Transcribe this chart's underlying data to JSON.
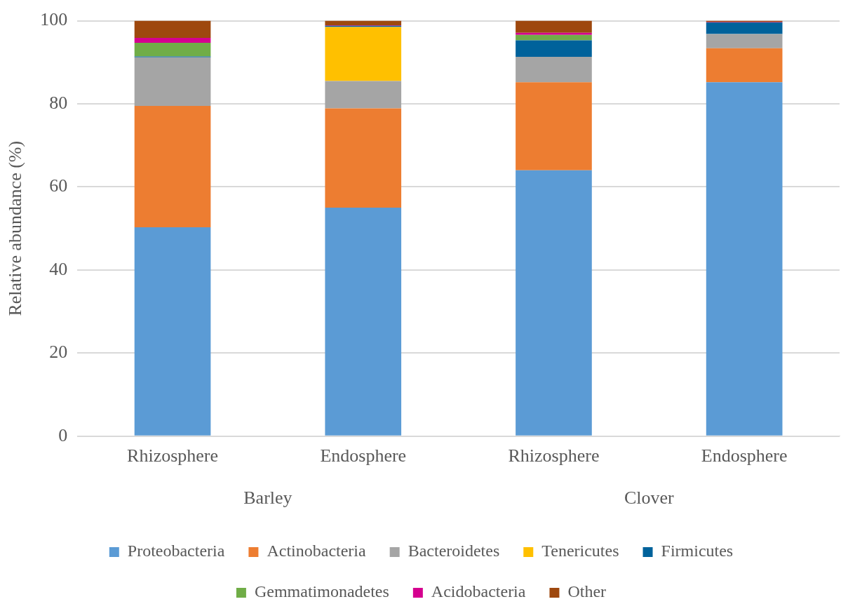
{
  "chart_data": {
    "type": "bar",
    "stacked": true,
    "ylabel": "Relative abundance (%)",
    "categories": [
      "Rhizosphere",
      "Endosphere",
      "Rhizosphere",
      "Endosphere"
    ],
    "annotations": [
      "Barley",
      "Clover"
    ],
    "series": [
      {
        "name": "Proteobacteria",
        "color": "#5b9bd5",
        "values": [
          50.3,
          55.0,
          64.0,
          85.2
        ]
      },
      {
        "name": "Actinobacteria",
        "color": "#ed7d31",
        "values": [
          29.2,
          23.9,
          21.2,
          8.2
        ]
      },
      {
        "name": "Bacteroidetes",
        "color": "#a5a5a5",
        "values": [
          11.7,
          6.6,
          6.1,
          3.4
        ]
      },
      {
        "name": "Tenericutes",
        "color": "#ffc000",
        "values": [
          0,
          13.0,
          0,
          0
        ]
      },
      {
        "name": "Firmicutes",
        "color": "#00629b",
        "values": [
          0.2,
          0.3,
          4.0,
          2.8
        ]
      },
      {
        "name": "Gemmatimonadetes",
        "color": "#70ad47",
        "values": [
          3.3,
          0,
          1.3,
          0
        ]
      },
      {
        "name": "Acidobacteria",
        "color": "#d5008f",
        "values": [
          1.2,
          0.1,
          0.5,
          0.1
        ]
      },
      {
        "name": "Other",
        "color": "#9e480e",
        "values": [
          4.1,
          1.1,
          2.9,
          0.3
        ]
      }
    ],
    "ylim": [
      0,
      100
    ],
    "yticks": [
      0,
      20,
      40,
      60,
      80,
      100
    ],
    "grid": "y",
    "legend": "bottom"
  }
}
